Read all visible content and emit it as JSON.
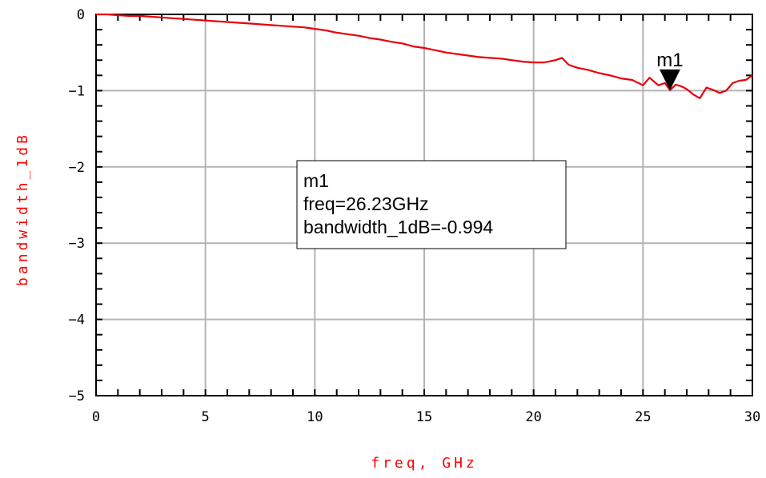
{
  "chart_data": {
    "type": "line",
    "title": "",
    "xlabel": "freq, GHz",
    "ylabel": "bandwidth_1dB",
    "xlim": [
      0,
      30
    ],
    "ylim": [
      -5,
      0
    ],
    "x_ticks": [
      0,
      5,
      10,
      15,
      20,
      25,
      30
    ],
    "x_tick_labels": [
      "0",
      "5",
      "10",
      "15",
      "20",
      "25",
      "30"
    ],
    "y_ticks": [
      0,
      -1,
      -2,
      -3,
      -4,
      -5
    ],
    "y_tick_labels": [
      "0",
      "−1",
      "−2",
      "−3",
      "−4",
      "−5"
    ],
    "grid": true,
    "series": [
      {
        "color": "#e8000b",
        "x": [
          0,
          0.5,
          1,
          1.5,
          2,
          2.5,
          3,
          3.5,
          4,
          4.5,
          5,
          5.5,
          6,
          6.5,
          7,
          7.5,
          8,
          8.5,
          9,
          9.5,
          10,
          10.5,
          11,
          11.5,
          12,
          12.5,
          13,
          13.5,
          14,
          14.5,
          15,
          15.5,
          16,
          16.5,
          17,
          17.5,
          18,
          18.5,
          19,
          19.5,
          20,
          20.5,
          21,
          21.3,
          21.6,
          22,
          22.5,
          23,
          23.5,
          24,
          24.5,
          25,
          25.3,
          25.7,
          26,
          26.23,
          26.5,
          26.8,
          27,
          27.3,
          27.6,
          27.9,
          28.2,
          28.5,
          28.8,
          29.1,
          29.4,
          29.7,
          30
        ],
        "y": [
          0,
          0,
          -0.01,
          -0.02,
          -0.02,
          -0.03,
          -0.04,
          -0.05,
          -0.06,
          -0.07,
          -0.08,
          -0.09,
          -0.1,
          -0.11,
          -0.12,
          -0.13,
          -0.14,
          -0.15,
          -0.16,
          -0.17,
          -0.19,
          -0.21,
          -0.24,
          -0.26,
          -0.28,
          -0.31,
          -0.33,
          -0.36,
          -0.38,
          -0.42,
          -0.44,
          -0.47,
          -0.5,
          -0.52,
          -0.54,
          -0.56,
          -0.57,
          -0.58,
          -0.6,
          -0.62,
          -0.63,
          -0.63,
          -0.6,
          -0.57,
          -0.66,
          -0.7,
          -0.73,
          -0.77,
          -0.8,
          -0.84,
          -0.86,
          -0.93,
          -0.83,
          -0.93,
          -0.9,
          -0.994,
          -0.92,
          -0.95,
          -0.98,
          -1.05,
          -1.1,
          -0.96,
          -0.99,
          -1.03,
          -1.0,
          -0.9,
          -0.87,
          -0.86,
          -0.8
        ]
      }
    ],
    "marker": {
      "name": "m1",
      "x": 26.23,
      "y": -0.994,
      "readout": [
        "m1",
        "freq=26.23GHz",
        "bandwidth_1dB=-0.994"
      ]
    }
  }
}
